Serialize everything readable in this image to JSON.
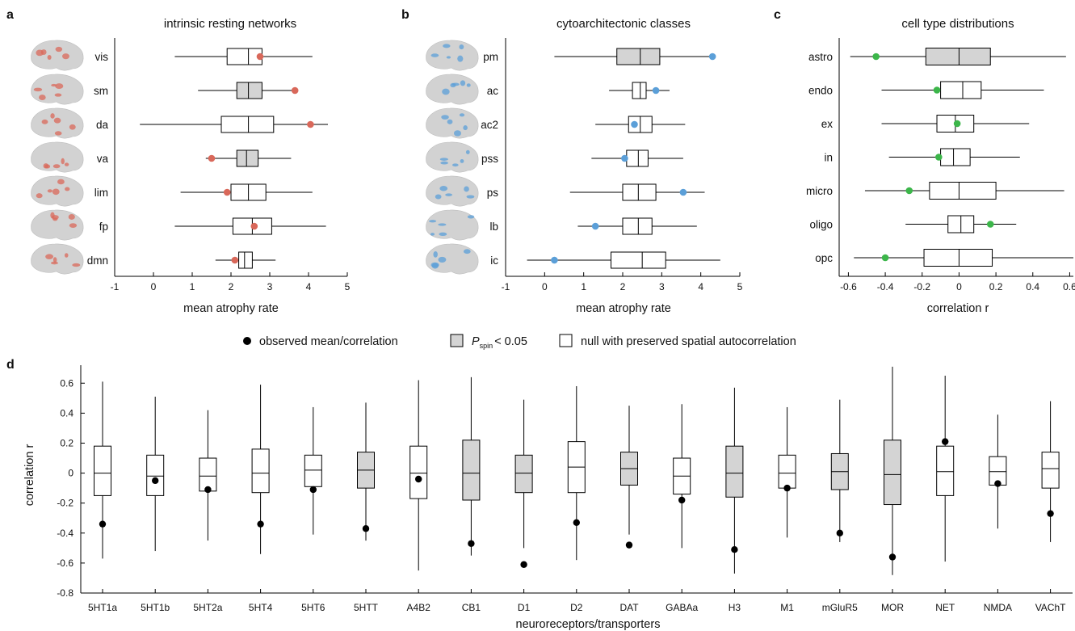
{
  "colors": {
    "significant_fill": "#d4d4d4",
    "null_fill": "#ffffff",
    "panel_a_marker": "#d9685a",
    "panel_b_marker": "#5b9fd8",
    "panel_c_marker": "#3cb64a",
    "panel_d_marker": "#000000",
    "brain_base": "#d2d2d2"
  },
  "legend": {
    "observed": "observed mean/correlation",
    "pspin_P": "P",
    "pspin_sub": "spin",
    "pspin_rest": "< 0.05",
    "null": "null with preserved spatial autocorrelation"
  },
  "chart_data": [
    {
      "panel": "a",
      "type": "box",
      "orientation": "horizontal",
      "title": "intrinsic resting networks",
      "xlabel": "mean atrophy rate",
      "xlim": [
        -1,
        5
      ],
      "xticks": [
        "-1",
        "0",
        "1",
        "2",
        "3",
        "4",
        "5"
      ],
      "icons": "brain-map",
      "categories": [
        "vis",
        "sm",
        "da",
        "va",
        "lim",
        "fp",
        "dmn"
      ],
      "boxes": [
        {
          "min": 0.55,
          "q1": 1.9,
          "med": 2.45,
          "q3": 2.8,
          "max": 4.1,
          "obs": 2.75,
          "sig": false
        },
        {
          "min": 1.15,
          "q1": 2.15,
          "med": 2.45,
          "q3": 2.8,
          "max": 3.7,
          "obs": 3.65,
          "sig": true
        },
        {
          "min": -0.35,
          "q1": 1.75,
          "med": 2.45,
          "q3": 3.1,
          "max": 4.5,
          "obs": 4.05,
          "sig": false
        },
        {
          "min": 1.35,
          "q1": 2.15,
          "med": 2.4,
          "q3": 2.7,
          "max": 3.55,
          "obs": 1.5,
          "sig": true
        },
        {
          "min": 0.7,
          "q1": 2.0,
          "med": 2.45,
          "q3": 2.9,
          "max": 4.1,
          "obs": 1.9,
          "sig": false
        },
        {
          "min": 0.55,
          "q1": 2.05,
          "med": 2.55,
          "q3": 3.05,
          "max": 4.45,
          "obs": 2.6,
          "sig": false
        },
        {
          "min": 1.6,
          "q1": 2.2,
          "med": 2.35,
          "q3": 2.55,
          "max": 3.15,
          "obs": 2.1,
          "sig": false
        }
      ]
    },
    {
      "panel": "b",
      "type": "box",
      "orientation": "horizontal",
      "title": "cytoarchitectonic classes",
      "xlabel": "mean atrophy rate",
      "xlim": [
        -1,
        5
      ],
      "xticks": [
        "-1",
        "0",
        "1",
        "2",
        "3",
        "4",
        "5"
      ],
      "icons": "brain-map",
      "categories": [
        "pm",
        "ac",
        "ac2",
        "pss",
        "ps",
        "lb",
        "ic"
      ],
      "boxes": [
        {
          "min": 0.25,
          "q1": 1.85,
          "med": 2.45,
          "q3": 2.95,
          "max": 4.35,
          "obs": 4.3,
          "sig": true
        },
        {
          "min": 1.65,
          "q1": 2.25,
          "med": 2.45,
          "q3": 2.6,
          "max": 3.2,
          "obs": 2.85,
          "sig": false
        },
        {
          "min": 1.3,
          "q1": 2.15,
          "med": 2.45,
          "q3": 2.75,
          "max": 3.6,
          "obs": 2.3,
          "sig": false
        },
        {
          "min": 1.2,
          "q1": 2.1,
          "med": 2.4,
          "q3": 2.65,
          "max": 3.55,
          "obs": 2.05,
          "sig": false
        },
        {
          "min": 0.65,
          "q1": 2.0,
          "med": 2.4,
          "q3": 2.85,
          "max": 4.1,
          "obs": 3.55,
          "sig": false
        },
        {
          "min": 0.85,
          "q1": 2.0,
          "med": 2.4,
          "q3": 2.75,
          "max": 3.9,
          "obs": 1.3,
          "sig": false
        },
        {
          "min": -0.45,
          "q1": 1.7,
          "med": 2.5,
          "q3": 3.1,
          "max": 4.5,
          "obs": 0.25,
          "sig": false
        }
      ]
    },
    {
      "panel": "c",
      "type": "box",
      "orientation": "horizontal",
      "title": "cell type distributions",
      "xlabel": "correlation r",
      "xlim": [
        -0.65,
        0.62
      ],
      "xticks": [
        "-0.6",
        "-0.4",
        "-0.2",
        "0",
        "0.2",
        "0.4",
        "0.6"
      ],
      "categories": [
        "astro",
        "endo",
        "ex",
        "in",
        "micro",
        "oligo",
        "opc"
      ],
      "boxes": [
        {
          "min": -0.59,
          "q1": -0.18,
          "med": 0.0,
          "q3": 0.17,
          "max": 0.58,
          "obs": -0.45,
          "sig": true
        },
        {
          "min": -0.42,
          "q1": -0.1,
          "med": 0.02,
          "q3": 0.12,
          "max": 0.46,
          "obs": -0.12,
          "sig": false
        },
        {
          "min": -0.42,
          "q1": -0.12,
          "med": -0.02,
          "q3": 0.08,
          "max": 0.38,
          "obs": -0.01,
          "sig": false
        },
        {
          "min": -0.38,
          "q1": -0.1,
          "med": -0.03,
          "q3": 0.06,
          "max": 0.33,
          "obs": -0.11,
          "sig": false
        },
        {
          "min": -0.51,
          "q1": -0.16,
          "med": 0.0,
          "q3": 0.2,
          "max": 0.57,
          "obs": -0.27,
          "sig": false
        },
        {
          "min": -0.29,
          "q1": -0.06,
          "med": 0.01,
          "q3": 0.08,
          "max": 0.31,
          "obs": 0.17,
          "sig": false
        },
        {
          "min": -0.57,
          "q1": -0.19,
          "med": 0.0,
          "q3": 0.18,
          "max": 0.62,
          "obs": -0.4,
          "sig": false
        }
      ]
    },
    {
      "panel": "d",
      "type": "box",
      "orientation": "vertical",
      "title": "",
      "xlabel": "neuroreceptors/transporters",
      "ylabel": "correlation r",
      "ylim": [
        -0.8,
        0.72
      ],
      "yticks": [
        "0.6",
        "0.4",
        "0.2",
        "0",
        "-0.2",
        "-0.4",
        "-0.6",
        "-0.8"
      ],
      "categories": [
        "5HT1a",
        "5HT1b",
        "5HT2a",
        "5HT4",
        "5HT6",
        "5HTT",
        "A4B2",
        "CB1",
        "D1",
        "D2",
        "DAT",
        "GABAa",
        "H3",
        "M1",
        "mGluR5",
        "MOR",
        "NET",
        "NMDA",
        "VAChT"
      ],
      "boxes": [
        {
          "min": -0.57,
          "q1": -0.15,
          "med": 0.0,
          "q3": 0.18,
          "max": 0.61,
          "obs": -0.34,
          "sig": false
        },
        {
          "min": -0.52,
          "q1": -0.15,
          "med": -0.02,
          "q3": 0.12,
          "max": 0.51,
          "obs": -0.05,
          "sig": false
        },
        {
          "min": -0.45,
          "q1": -0.12,
          "med": -0.02,
          "q3": 0.1,
          "max": 0.42,
          "obs": -0.11,
          "sig": false
        },
        {
          "min": -0.54,
          "q1": -0.13,
          "med": 0.0,
          "q3": 0.16,
          "max": 0.59,
          "obs": -0.34,
          "sig": false
        },
        {
          "min": -0.41,
          "q1": -0.09,
          "med": 0.02,
          "q3": 0.12,
          "max": 0.44,
          "obs": -0.11,
          "sig": false
        },
        {
          "min": -0.45,
          "q1": -0.1,
          "med": 0.02,
          "q3": 0.14,
          "max": 0.47,
          "obs": -0.37,
          "sig": true
        },
        {
          "min": -0.65,
          "q1": -0.17,
          "med": 0.0,
          "q3": 0.18,
          "max": 0.62,
          "obs": -0.04,
          "sig": false
        },
        {
          "min": -0.55,
          "q1": -0.18,
          "med": 0.0,
          "q3": 0.22,
          "max": 0.64,
          "obs": -0.47,
          "sig": true
        },
        {
          "min": -0.5,
          "q1": -0.13,
          "med": 0.0,
          "q3": 0.12,
          "max": 0.49,
          "obs": -0.61,
          "sig": true
        },
        {
          "min": -0.58,
          "q1": -0.13,
          "med": 0.04,
          "q3": 0.21,
          "max": 0.58,
          "obs": -0.33,
          "sig": false
        },
        {
          "min": -0.41,
          "q1": -0.08,
          "med": 0.03,
          "q3": 0.14,
          "max": 0.45,
          "obs": -0.48,
          "sig": true
        },
        {
          "min": -0.5,
          "q1": -0.14,
          "med": -0.02,
          "q3": 0.1,
          "max": 0.46,
          "obs": -0.18,
          "sig": false
        },
        {
          "min": -0.67,
          "q1": -0.16,
          "med": 0.0,
          "q3": 0.18,
          "max": 0.57,
          "obs": -0.51,
          "sig": true
        },
        {
          "min": -0.43,
          "q1": -0.1,
          "med": 0.0,
          "q3": 0.12,
          "max": 0.44,
          "obs": -0.1,
          "sig": false
        },
        {
          "min": -0.46,
          "q1": -0.11,
          "med": 0.01,
          "q3": 0.13,
          "max": 0.49,
          "obs": -0.4,
          "sig": true
        },
        {
          "min": -0.68,
          "q1": -0.21,
          "med": -0.01,
          "q3": 0.22,
          "max": 0.71,
          "obs": -0.56,
          "sig": true
        },
        {
          "min": -0.59,
          "q1": -0.15,
          "med": 0.01,
          "q3": 0.18,
          "max": 0.65,
          "obs": 0.21,
          "sig": false
        },
        {
          "min": -0.37,
          "q1": -0.08,
          "med": 0.01,
          "q3": 0.11,
          "max": 0.39,
          "obs": -0.07,
          "sig": false
        },
        {
          "min": -0.46,
          "q1": -0.1,
          "med": 0.03,
          "q3": 0.14,
          "max": 0.48,
          "obs": -0.27,
          "sig": false
        }
      ]
    }
  ]
}
